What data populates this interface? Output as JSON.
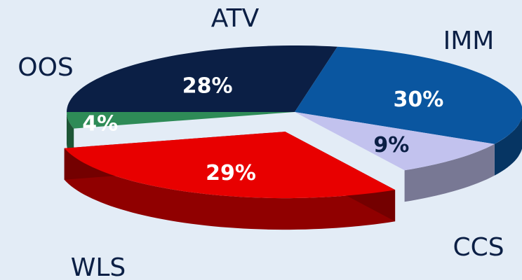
{
  "chart_data": {
    "type": "pie",
    "categories": [
      "ATV",
      "IMM",
      "CCS",
      "WLS",
      "OOS"
    ],
    "values": [
      28,
      30,
      9,
      29,
      4
    ],
    "value_labels": [
      "28%",
      "30%",
      "9%",
      "29%",
      "4%"
    ],
    "colors": [
      "#0b1f45",
      "#0a56a0",
      "#c2c2ee",
      "#e80000",
      "#2e8b57"
    ]
  }
}
